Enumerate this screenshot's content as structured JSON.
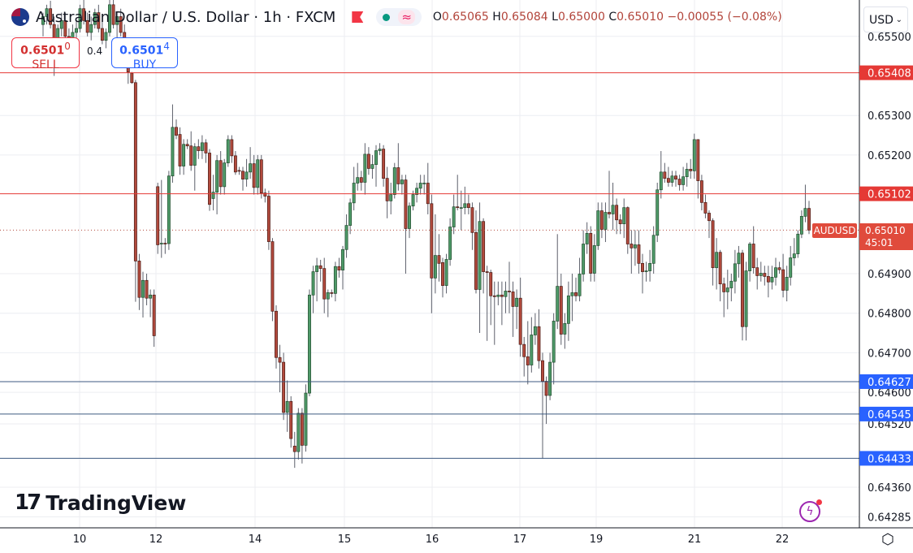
{
  "header": {
    "title": "Australian Dollar / U.S. Dollar · 1h · FXCM",
    "flag_icon": "australia-flag-icon",
    "ohlc": {
      "o_label": "O",
      "o": "0.65065",
      "h_label": "H",
      "h": "0.65084",
      "l_label": "L",
      "l": "0.65000",
      "c_label": "C",
      "c": "0.65010",
      "change": "−0.00055 (−0.08%)"
    }
  },
  "trade": {
    "sell_price_main": "0.6501",
    "sell_price_sup": "0",
    "sell_label": "SELL",
    "spread": "0.4",
    "buy_price_main": "0.6501",
    "buy_price_sup": "4",
    "buy_label": "BUY"
  },
  "currency_select": {
    "value": "USD"
  },
  "symbol_label": "AUDUSD",
  "last_price": {
    "price": "0.65010",
    "countdown": "45:01"
  },
  "brand": {
    "name": "TradingView"
  },
  "colors": {
    "up": "#4e9a68",
    "down": "#b24a3d",
    "resistance": "#e53935",
    "support": "#2962ff",
    "support_line": "#3d5a80"
  },
  "levels": [
    {
      "price": 0.65408,
      "label": "0.65408",
      "kind": "resistance"
    },
    {
      "price": 0.65102,
      "label": "0.65102",
      "kind": "resistance"
    },
    {
      "price": 0.64627,
      "label": "0.64627",
      "kind": "support"
    },
    {
      "price": 0.64545,
      "label": "0.64545",
      "kind": "support"
    },
    {
      "price": 0.64433,
      "label": "0.64433",
      "kind": "support"
    }
  ],
  "chart_data": {
    "type": "candlestick",
    "symbol": "AUDUSD",
    "interval": "1h",
    "ylim": [
      0.64255,
      0.65592
    ],
    "grid": true,
    "y_ticks": [
      "0.65500",
      "0.65300",
      "0.65200",
      "0.64900",
      "0.64800",
      "0.64700",
      "0.64600",
      "0.64520",
      "0.64360",
      "0.64285"
    ],
    "x_ticks": [
      "10",
      "12",
      "14",
      "15",
      "16",
      "17",
      "19",
      "21",
      "22"
    ],
    "candles_ohlc": [
      [
        0.6553,
        0.6556,
        0.655,
        0.6555
      ],
      [
        0.6555,
        0.6558,
        0.6553,
        0.6557
      ],
      [
        0.6557,
        0.6559,
        0.6552,
        0.6553
      ],
      [
        0.6553,
        0.6555,
        0.654,
        0.6549
      ],
      [
        0.6549,
        0.6553,
        0.6546,
        0.6552
      ],
      [
        0.6552,
        0.6556,
        0.655,
        0.6554
      ],
      [
        0.6554,
        0.6556,
        0.6549,
        0.655
      ],
      [
        0.655,
        0.6552,
        0.6546,
        0.6548
      ],
      [
        0.6548,
        0.6553,
        0.6547,
        0.6551
      ],
      [
        0.6551,
        0.6554,
        0.6549,
        0.6552
      ],
      [
        0.6552,
        0.6558,
        0.6551,
        0.6557
      ],
      [
        0.6557,
        0.656,
        0.6553,
        0.6554
      ],
      [
        0.6554,
        0.6556,
        0.655,
        0.6551
      ],
      [
        0.6551,
        0.6555,
        0.6549,
        0.6553
      ],
      [
        0.6553,
        0.6557,
        0.6552,
        0.6556
      ],
      [
        0.6556,
        0.6558,
        0.6551,
        0.6552
      ],
      [
        0.6552,
        0.6554,
        0.6548,
        0.6549
      ],
      [
        0.6549,
        0.6552,
        0.6547,
        0.6551
      ],
      [
        0.6551,
        0.656,
        0.655,
        0.6558
      ],
      [
        0.6558,
        0.656,
        0.6552,
        0.6553
      ],
      [
        0.6553,
        0.6556,
        0.6549,
        0.6555
      ],
      [
        0.6555,
        0.6557,
        0.655,
        0.6551
      ],
      [
        0.6551,
        0.6553,
        0.6545,
        0.6547
      ],
      [
        0.6547,
        0.6549,
        0.6538,
        0.6541
      ],
      [
        0.65407,
        0.6541,
        0.6538,
        0.65383
      ],
      [
        0.65383,
        0.6539,
        0.64829,
        0.64932
      ],
      [
        0.64932,
        0.6495,
        0.64808,
        0.6484
      ],
      [
        0.6484,
        0.64905,
        0.64789,
        0.64883
      ],
      [
        0.64883,
        0.649,
        0.6482,
        0.64838
      ],
      [
        0.64838,
        0.6486,
        0.6479,
        0.64846
      ],
      [
        0.64846,
        0.6486,
        0.64715,
        0.64743
      ],
      [
        0.6512,
        0.6513,
        0.6495,
        0.64973
      ],
      [
        0.64975,
        0.65137,
        0.6494,
        0.64977
      ],
      [
        0.64977,
        0.6499,
        0.6495,
        0.64976
      ],
      [
        0.64976,
        0.6516,
        0.6496,
        0.65147
      ],
      [
        0.65147,
        0.65328,
        0.6513,
        0.6527
      ],
      [
        0.6527,
        0.6529,
        0.6524,
        0.6525
      ],
      [
        0.65252,
        0.6527,
        0.6515,
        0.65172
      ],
      [
        0.65172,
        0.6524,
        0.6515,
        0.65227
      ],
      [
        0.65227,
        0.6524,
        0.65215,
        0.65223
      ],
      [
        0.65223,
        0.6526,
        0.6516,
        0.65174
      ],
      [
        0.65174,
        0.6523,
        0.6511,
        0.65221
      ],
      [
        0.65221,
        0.6524,
        0.6519,
        0.65211
      ],
      [
        0.65211,
        0.6525,
        0.6519,
        0.65231
      ],
      [
        0.65231,
        0.6524,
        0.6518,
        0.65205
      ],
      [
        0.65205,
        0.65215,
        0.65059,
        0.65075
      ],
      [
        0.6509,
        0.6515,
        0.6506,
        0.65106
      ],
      [
        0.65106,
        0.652,
        0.6505,
        0.65186
      ],
      [
        0.65186,
        0.6521,
        0.651,
        0.6512
      ],
      [
        0.6512,
        0.6519,
        0.651,
        0.6518
      ],
      [
        0.6518,
        0.6525,
        0.6517,
        0.65239
      ],
      [
        0.65239,
        0.6525,
        0.6518,
        0.65198
      ],
      [
        0.65198,
        0.6521,
        0.6515,
        0.65157
      ],
      [
        0.65161,
        0.6517,
        0.6515,
        0.65159
      ],
      [
        0.65159,
        0.6517,
        0.6511,
        0.65139
      ],
      [
        0.65139,
        0.6519,
        0.6512,
        0.65157
      ],
      [
        0.65157,
        0.6522,
        0.6514,
        0.65178
      ],
      [
        0.65178,
        0.652,
        0.651,
        0.65118
      ],
      [
        0.65118,
        0.652,
        0.651,
        0.65188
      ],
      [
        0.65188,
        0.652,
        0.6509,
        0.65104
      ],
      [
        0.65104,
        0.65115,
        0.6508,
        0.65096
      ],
      [
        0.65096,
        0.6511,
        0.6496,
        0.64981
      ],
      [
        0.64981,
        0.6499,
        0.6478,
        0.64805
      ],
      [
        0.64805,
        0.6482,
        0.6466,
        0.64688
      ],
      [
        0.64688,
        0.6472,
        0.646,
        0.64676
      ],
      [
        0.64676,
        0.647,
        0.6453,
        0.64549
      ],
      [
        0.64549,
        0.6463,
        0.645,
        0.64577
      ],
      [
        0.64577,
        0.6459,
        0.6446,
        0.64483
      ],
      [
        0.64464,
        0.645,
        0.64409,
        0.6445
      ],
      [
        0.6445,
        0.6456,
        0.6443,
        0.64547
      ],
      [
        0.64547,
        0.6456,
        0.6442,
        0.64466
      ],
      [
        0.64466,
        0.6462,
        0.6445,
        0.64598
      ],
      [
        0.64598,
        0.6486,
        0.6459,
        0.64846
      ],
      [
        0.64846,
        0.6492,
        0.648,
        0.64905
      ],
      [
        0.64905,
        0.6494,
        0.6483,
        0.6492
      ],
      [
        0.6492,
        0.64935,
        0.6488,
        0.64913
      ],
      [
        0.64913,
        0.6494,
        0.648,
        0.64836
      ],
      [
        0.64836,
        0.6486,
        0.6479,
        0.64852
      ],
      [
        0.64852,
        0.6486,
        0.6484,
        0.6485
      ],
      [
        0.6485,
        0.6493,
        0.6483,
        0.64918
      ],
      [
        0.64918,
        0.6494,
        0.6489,
        0.64909
      ],
      [
        0.64909,
        0.6497,
        0.6486,
        0.64961
      ],
      [
        0.64961,
        0.6505,
        0.6494,
        0.65022
      ],
      [
        0.65022,
        0.6509,
        0.65,
        0.65079
      ],
      [
        0.65079,
        0.6517,
        0.6506,
        0.65129
      ],
      [
        0.65129,
        0.6518,
        0.6511,
        0.65143
      ],
      [
        0.65143,
        0.6516,
        0.6511,
        0.65131
      ],
      [
        0.65131,
        0.6523,
        0.651,
        0.65202
      ],
      [
        0.65202,
        0.6522,
        0.6515,
        0.65166
      ],
      [
        0.65166,
        0.652,
        0.6514,
        0.65176
      ],
      [
        0.65176,
        0.65225,
        0.6512,
        0.65211
      ],
      [
        0.65211,
        0.6523,
        0.652,
        0.65215
      ],
      [
        0.65215,
        0.65225,
        0.6512,
        0.65141
      ],
      [
        0.65141,
        0.6517,
        0.6504,
        0.65084
      ],
      [
        0.65084,
        0.6513,
        0.6505,
        0.651
      ],
      [
        0.651,
        0.6518,
        0.6509,
        0.65168
      ],
      [
        0.65168,
        0.6523,
        0.6511,
        0.65127
      ],
      [
        0.65127,
        0.6515,
        0.651,
        0.65137
      ],
      [
        0.65137,
        0.6515,
        0.649,
        0.65014
      ],
      [
        0.65014,
        0.6508,
        0.6499,
        0.65071
      ],
      [
        0.65071,
        0.6511,
        0.6506,
        0.651
      ],
      [
        0.651,
        0.6513,
        0.6508,
        0.65116
      ],
      [
        0.65116,
        0.6515,
        0.651,
        0.65129
      ],
      [
        0.65127,
        0.6515,
        0.651,
        0.65129
      ],
      [
        0.65129,
        0.6518,
        0.6505,
        0.65077
      ],
      [
        0.65077,
        0.651,
        0.648,
        0.64889
      ],
      [
        0.64889,
        0.6505,
        0.6485,
        0.64946
      ],
      [
        0.64946,
        0.65,
        0.6488,
        0.64926
      ],
      [
        0.64928,
        0.6494,
        0.6484,
        0.6487
      ],
      [
        0.6487,
        0.6495,
        0.6485,
        0.64936
      ],
      [
        0.64936,
        0.6504,
        0.6492,
        0.65018
      ],
      [
        0.65018,
        0.651,
        0.65,
        0.65069
      ],
      [
        0.65069,
        0.6515,
        0.6506,
        0.65067
      ],
      [
        0.65067,
        0.6511,
        0.6501,
        0.65067
      ],
      [
        0.65067,
        0.6512,
        0.6505,
        0.65077
      ],
      [
        0.65077,
        0.651,
        0.6505,
        0.65067
      ],
      [
        0.65067,
        0.6508,
        0.6496,
        0.65004
      ],
      [
        0.65004,
        0.6506,
        0.6485,
        0.6486
      ],
      [
        0.6486,
        0.6508,
        0.6475,
        0.65032
      ],
      [
        0.65032,
        0.6504,
        0.6485,
        0.64905
      ],
      [
        0.64905,
        0.6492,
        0.6473,
        0.64903
      ],
      [
        0.64903,
        0.6491,
        0.6477,
        0.64844
      ],
      [
        0.64844,
        0.6488,
        0.6472,
        0.64842
      ],
      [
        0.64842,
        0.6488,
        0.6482,
        0.64846
      ],
      [
        0.64846,
        0.6488,
        0.6477,
        0.64842
      ],
      [
        0.64842,
        0.6488,
        0.648,
        0.64856
      ],
      [
        0.64856,
        0.6493,
        0.648,
        0.64854
      ],
      [
        0.64854,
        0.6488,
        0.6474,
        0.64817
      ],
      [
        0.64817,
        0.6486,
        0.6476,
        0.64838
      ],
      [
        0.64838,
        0.6489,
        0.6469,
        0.64721
      ],
      [
        0.64721,
        0.6474,
        0.6464,
        0.6469
      ],
      [
        0.6469,
        0.6478,
        0.6462,
        0.64669
      ],
      [
        0.64669,
        0.6479,
        0.6465,
        0.64745
      ],
      [
        0.64745,
        0.648,
        0.6472,
        0.64766
      ],
      [
        0.64766,
        0.6481,
        0.6466,
        0.6468
      ],
      [
        0.6468,
        0.647,
        0.64432,
        0.64628
      ],
      [
        0.64628,
        0.6464,
        0.6452,
        0.64592
      ],
      [
        0.64592,
        0.647,
        0.6458,
        0.64676
      ],
      [
        0.64676,
        0.648,
        0.6462,
        0.6478
      ],
      [
        0.6478,
        0.65,
        0.6476,
        0.64868
      ],
      [
        0.64868,
        0.649,
        0.6472,
        0.64747
      ],
      [
        0.64747,
        0.648,
        0.6471,
        0.64774
      ],
      [
        0.64774,
        0.6488,
        0.6473,
        0.64844
      ],
      [
        0.64844,
        0.649,
        0.6478,
        0.64852
      ],
      [
        0.64852,
        0.6489,
        0.6483,
        0.64844
      ],
      [
        0.64844,
        0.6494,
        0.6483,
        0.64899
      ],
      [
        0.64899,
        0.6501,
        0.6488,
        0.64975
      ],
      [
        0.64975,
        0.6503,
        0.6495,
        0.65002
      ],
      [
        0.65002,
        0.6502,
        0.6488,
        0.64901
      ],
      [
        0.64901,
        0.65,
        0.6488,
        0.64971
      ],
      [
        0.64971,
        0.6508,
        0.6496,
        0.65059
      ],
      [
        0.65059,
        0.6508,
        0.6499,
        0.65012
      ],
      [
        0.65012,
        0.6508,
        0.6498,
        0.65055
      ],
      [
        0.65055,
        0.6516,
        0.6504,
        0.65051
      ],
      [
        0.65051,
        0.6513,
        0.6501,
        0.65073
      ],
      [
        0.65073,
        0.6509,
        0.65,
        0.65036
      ],
      [
        0.65036,
        0.6505,
        0.65,
        0.65026
      ],
      [
        0.65026,
        0.6509,
        0.6499,
        0.65067
      ],
      [
        0.65067,
        0.6507,
        0.6495,
        0.64975
      ],
      [
        0.64975,
        0.6501,
        0.649,
        0.64965
      ],
      [
        0.64965,
        0.6501,
        0.6492,
        0.64973
      ],
      [
        0.64973,
        0.6501,
        0.649,
        0.64926
      ],
      [
        0.64926,
        0.6495,
        0.6485,
        0.64905
      ],
      [
        0.64905,
        0.6493,
        0.6488,
        0.64907
      ],
      [
        0.64907,
        0.6496,
        0.6488,
        0.64926
      ],
      [
        0.64926,
        0.6502,
        0.649,
        0.64997
      ],
      [
        0.64997,
        0.6513,
        0.6498,
        0.65112
      ],
      [
        0.65112,
        0.6521,
        0.6509,
        0.65157
      ],
      [
        0.65157,
        0.6518,
        0.6513,
        0.65141
      ],
      [
        0.65141,
        0.6517,
        0.6512,
        0.65131
      ],
      [
        0.65131,
        0.6516,
        0.6512,
        0.65147
      ],
      [
        0.65147,
        0.6516,
        0.6512,
        0.65139
      ],
      [
        0.65139,
        0.6515,
        0.6511,
        0.65125
      ],
      [
        0.65125,
        0.6517,
        0.6511,
        0.65145
      ],
      [
        0.65145,
        0.6518,
        0.6512,
        0.65164
      ],
      [
        0.65164,
        0.6519,
        0.6514,
        0.6516
      ],
      [
        0.6516,
        0.65254,
        0.6514,
        0.65239
      ],
      [
        0.65239,
        0.6524,
        0.6509,
        0.65135
      ],
      [
        0.65135,
        0.6515,
        0.6506,
        0.6508
      ],
      [
        0.6508,
        0.651,
        0.6504,
        0.65053
      ],
      [
        0.65053,
        0.6506,
        0.6499,
        0.65034
      ],
      [
        0.65034,
        0.6504,
        0.6487,
        0.64915
      ],
      [
        0.64915,
        0.6499,
        0.6486,
        0.64954
      ],
      [
        0.64954,
        0.6496,
        0.6483,
        0.64874
      ],
      [
        0.64874,
        0.6489,
        0.6479,
        0.64854
      ],
      [
        0.64854,
        0.6491,
        0.6481,
        0.64864
      ],
      [
        0.64864,
        0.649,
        0.6483,
        0.64881
      ],
      [
        0.64881,
        0.6496,
        0.6485,
        0.64925
      ],
      [
        0.64925,
        0.6497,
        0.6489,
        0.64952
      ],
      [
        0.64952,
        0.6496,
        0.64731,
        0.64766
      ],
      [
        0.64766,
        0.6493,
        0.64731,
        0.64907
      ],
      [
        0.64907,
        0.6498,
        0.6488,
        0.64975
      ],
      [
        0.64975,
        0.6502,
        0.649,
        0.64915
      ],
      [
        0.64915,
        0.6494,
        0.6486,
        0.64895
      ],
      [
        0.64895,
        0.6493,
        0.6488,
        0.64901
      ],
      [
        0.64901,
        0.6492,
        0.6487,
        0.64893
      ],
      [
        0.64893,
        0.6492,
        0.6484,
        0.64879
      ],
      [
        0.64879,
        0.6492,
        0.6486,
        0.64891
      ],
      [
        0.64891,
        0.6494,
        0.6487,
        0.64915
      ],
      [
        0.64915,
        0.6493,
        0.649,
        0.6491
      ],
      [
        0.6491,
        0.6495,
        0.6484,
        0.64858
      ],
      [
        0.64858,
        0.6492,
        0.6483,
        0.64891
      ],
      [
        0.64891,
        0.6497,
        0.6487,
        0.6494
      ],
      [
        0.6494,
        0.6499,
        0.6492,
        0.6495
      ],
      [
        0.6495,
        0.6501,
        0.6494,
        0.65
      ],
      [
        0.65,
        0.6506,
        0.6499,
        0.65045
      ],
      [
        0.65045,
        0.65125,
        0.6503,
        0.65065
      ],
      [
        0.65065,
        0.65084,
        0.65,
        0.6501
      ]
    ]
  }
}
